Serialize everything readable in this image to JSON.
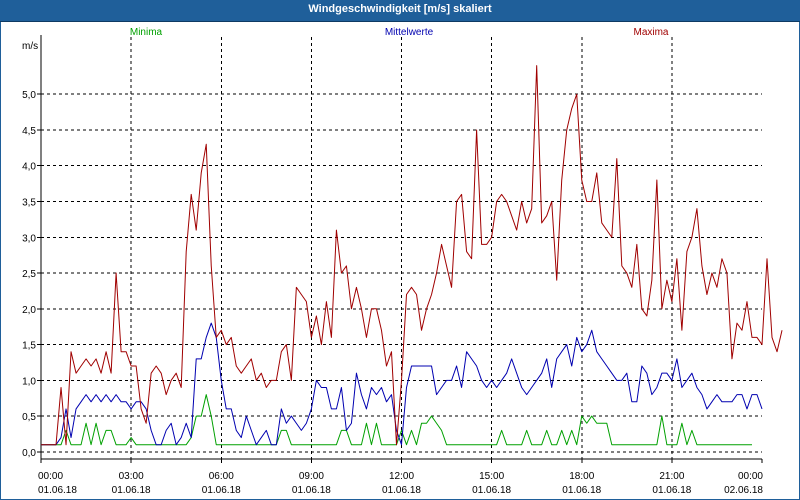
{
  "window": {
    "title": "Windgeschwindigkeit [m/s] skaliert"
  },
  "colors": {
    "titlebar": "#1f5f9a",
    "minima": "#00a000",
    "mittelwerte": "#0000b0",
    "maxima": "#a00000",
    "grid": "#000000"
  },
  "chart_data": {
    "type": "line",
    "title": "Windgeschwindigkeit [m/s] skaliert",
    "ylabel": "m/s",
    "xlabel": "",
    "ylim": [
      -0.1,
      5.8
    ],
    "xlim": [
      0,
      144
    ],
    "grid": true,
    "legend_placement": "top",
    "y_ticks": [
      {
        "value": 0.0,
        "label": "0,0"
      },
      {
        "value": 0.5,
        "label": "0,5"
      },
      {
        "value": 1.0,
        "label": "1,0"
      },
      {
        "value": 1.5,
        "label": "1,5"
      },
      {
        "value": 2.0,
        "label": "2,0"
      },
      {
        "value": 2.5,
        "label": "2,5"
      },
      {
        "value": 3.0,
        "label": "3,0"
      },
      {
        "value": 3.5,
        "label": "3,5"
      },
      {
        "value": 4.0,
        "label": "4,0"
      },
      {
        "value": 4.5,
        "label": "4,5"
      },
      {
        "value": 5.0,
        "label": "5,0"
      }
    ],
    "x_ticks": [
      {
        "value": 0,
        "time": "00:00",
        "date": "01.06.18"
      },
      {
        "value": 18,
        "time": "03:00",
        "date": "01.06.18"
      },
      {
        "value": 36,
        "time": "06:00",
        "date": "01.06.18"
      },
      {
        "value": 54,
        "time": "09:00",
        "date": "01.06.18"
      },
      {
        "value": 72,
        "time": "12:00",
        "date": "01.06.18"
      },
      {
        "value": 90,
        "time": "15:00",
        "date": "01.06.18"
      },
      {
        "value": 108,
        "time": "18:00",
        "date": "01.06.18"
      },
      {
        "value": 126,
        "time": "21:00",
        "date": "01.06.18"
      },
      {
        "value": 144,
        "time": "00:00",
        "date": "02.06.18"
      }
    ],
    "series": [
      {
        "name": "Minima",
        "values": [
          0.1,
          0.1,
          0.1,
          0.1,
          0.1,
          0.3,
          0.1,
          0.1,
          0.1,
          0.4,
          0.1,
          0.4,
          0.1,
          0.3,
          0.3,
          0.1,
          0.1,
          0.1,
          0.2,
          0.1,
          0.1,
          0.1,
          0.1,
          0.1,
          0.1,
          0.1,
          0.1,
          0.1,
          0.1,
          0.1,
          0.2,
          0.5,
          0.5,
          0.8,
          0.5,
          0.1,
          0.1,
          0.1,
          0.1,
          0.1,
          0.1,
          0.1,
          0.1,
          0.1,
          0.1,
          0.1,
          0.1,
          0.1,
          0.3,
          0.3,
          0.1,
          0.1,
          0.1,
          0.1,
          0.1,
          0.1,
          0.1,
          0.1,
          0.1,
          0.1,
          0.3,
          0.3,
          0.1,
          0.1,
          0.1,
          0.4,
          0.1,
          0.4,
          0.1,
          0.1,
          0.1,
          0.1,
          0.3,
          0.1,
          0.3,
          0.1,
          0.4,
          0.4,
          0.5,
          0.4,
          0.3,
          0.1,
          0.1,
          0.1,
          0.1,
          0.1,
          0.1,
          0.1,
          0.1,
          0.1,
          0.1,
          0.1,
          0.3,
          0.1,
          0.1,
          0.1,
          0.1,
          0.3,
          0.1,
          0.1,
          0.1,
          0.3,
          0.1,
          0.1,
          0.3,
          0.1,
          0.3,
          0.1,
          0.5,
          0.4,
          0.5,
          0.4,
          0.4,
          0.4,
          0.1,
          0.1,
          0.1,
          0.1,
          0.1,
          0.1,
          0.1,
          0.1,
          0.1,
          0.1,
          0.5,
          0.1,
          0.1,
          0.1,
          0.4,
          0.1,
          0.3,
          0.1,
          0.1,
          0.1,
          0.1,
          0.1,
          0.1,
          0.1,
          0.1,
          0.1,
          0.1,
          0.1,
          0.1
        ]
      },
      {
        "name": "Mittelwerte",
        "values": [
          0.1,
          0.1,
          0.1,
          0.1,
          0.2,
          0.6,
          0.2,
          0.6,
          0.7,
          0.8,
          0.7,
          0.8,
          0.7,
          0.8,
          0.7,
          0.8,
          0.7,
          0.7,
          0.6,
          0.7,
          0.7,
          0.6,
          0.3,
          0.1,
          0.1,
          0.3,
          0.4,
          0.1,
          0.2,
          0.4,
          0.2,
          1.3,
          1.3,
          1.6,
          1.8,
          1.6,
          1.0,
          0.6,
          0.6,
          0.3,
          0.2,
          0.5,
          0.3,
          0.1,
          0.2,
          0.3,
          0.1,
          0.1,
          0.6,
          0.4,
          0.5,
          0.4,
          0.3,
          0.4,
          0.6,
          1.0,
          0.9,
          0.9,
          0.6,
          0.6,
          0.9,
          0.3,
          0.4,
          1.1,
          0.8,
          0.6,
          0.9,
          0.8,
          0.9,
          0.7,
          0.8,
          0.3,
          0.1,
          0.9,
          1.2,
          1.2,
          1.2,
          1.2,
          1.2,
          0.8,
          0.9,
          1.0,
          1.0,
          1.2,
          0.9,
          1.4,
          1.3,
          1.2,
          1.0,
          0.9,
          1.0,
          0.9,
          1.0,
          1.1,
          1.3,
          1.1,
          0.9,
          0.8,
          0.9,
          1.0,
          1.1,
          1.3,
          0.9,
          1.3,
          1.4,
          1.5,
          1.2,
          1.6,
          1.4,
          1.5,
          1.7,
          1.4,
          1.3,
          1.2,
          1.1,
          1.0,
          1.0,
          1.1,
          0.7,
          0.7,
          1.2,
          1.1,
          0.8,
          0.9,
          1.1,
          1.1,
          1.0,
          1.3,
          0.9,
          1.0,
          1.1,
          0.9,
          0.8,
          0.6,
          0.7,
          0.8,
          0.7,
          0.7,
          0.7,
          0.8,
          0.8,
          0.6,
          0.8,
          0.8,
          0.6
        ]
      },
      {
        "name": "Maxima",
        "values": [
          0.1,
          0.1,
          0.1,
          0.1,
          0.9,
          0.1,
          1.4,
          1.1,
          1.2,
          1.3,
          1.2,
          1.3,
          1.1,
          1.4,
          1.1,
          2.5,
          1.4,
          1.4,
          1.2,
          1.2,
          0.6,
          0.4,
          1.1,
          1.2,
          1.1,
          0.8,
          1.0,
          1.1,
          0.9,
          2.8,
          3.6,
          3.1,
          3.9,
          4.3,
          2.6,
          1.6,
          1.7,
          1.5,
          1.6,
          1.2,
          1.1,
          1.2,
          1.3,
          1.0,
          1.1,
          0.9,
          1.0,
          1.0,
          1.4,
          1.5,
          1.0,
          2.3,
          2.2,
          2.1,
          1.6,
          1.9,
          1.5,
          2.1,
          1.6,
          3.1,
          2.5,
          2.6,
          2.0,
          2.3,
          2.0,
          1.6,
          2.0,
          2.0,
          1.7,
          1.2,
          1.4,
          0.1,
          1.0,
          2.2,
          2.3,
          2.2,
          1.7,
          2.0,
          2.2,
          2.5,
          2.9,
          2.6,
          2.3,
          3.5,
          3.6,
          2.8,
          2.7,
          4.5,
          2.9,
          2.9,
          3.0,
          3.5,
          3.6,
          3.5,
          3.3,
          3.1,
          3.5,
          3.2,
          3.4,
          5.4,
          3.2,
          3.3,
          3.5,
          2.4,
          3.8,
          4.5,
          4.8,
          5.0,
          3.8,
          3.5,
          3.5,
          3.9,
          3.2,
          3.1,
          3.0,
          4.1,
          2.6,
          2.5,
          2.3,
          2.9,
          2.0,
          1.9,
          2.4,
          3.8,
          2.0,
          2.4,
          2.1,
          2.7,
          1.7,
          2.8,
          3.0,
          3.4,
          2.6,
          2.2,
          2.5,
          2.3,
          2.7,
          2.5,
          1.3,
          1.8,
          1.7,
          2.1,
          1.6,
          1.6,
          1.5,
          2.7,
          1.6,
          1.4,
          1.7
        ]
      }
    ]
  }
}
